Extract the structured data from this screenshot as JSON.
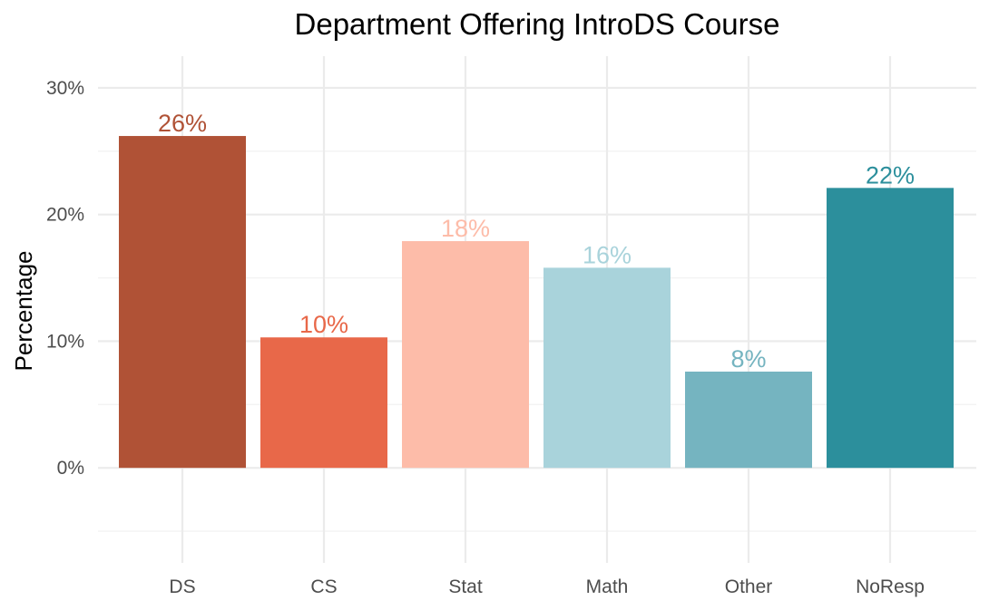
{
  "chart_data": {
    "type": "bar",
    "title": "Department Offering IntroDS Course",
    "xlabel": "",
    "ylabel": "Percentage",
    "categories": [
      "DS",
      "CS",
      "Stat",
      "Math",
      "Other",
      "NoResp"
    ],
    "values": [
      26.2,
      10.3,
      17.9,
      15.8,
      7.6,
      22.1
    ],
    "data_labels": [
      "26%",
      "10%",
      "18%",
      "16%",
      "8%",
      "22%"
    ],
    "colors": [
      "#B05236",
      "#E86849",
      "#FDBCA9",
      "#A9D3DB",
      "#75B4C0",
      "#2C8F9C"
    ],
    "ylim": [
      -7.5,
      32.5
    ],
    "yticks": [
      0,
      10,
      20,
      30
    ],
    "ytick_labels": [
      "0%",
      "10%",
      "20%",
      "30%"
    ],
    "grid": true,
    "legend": "none"
  }
}
